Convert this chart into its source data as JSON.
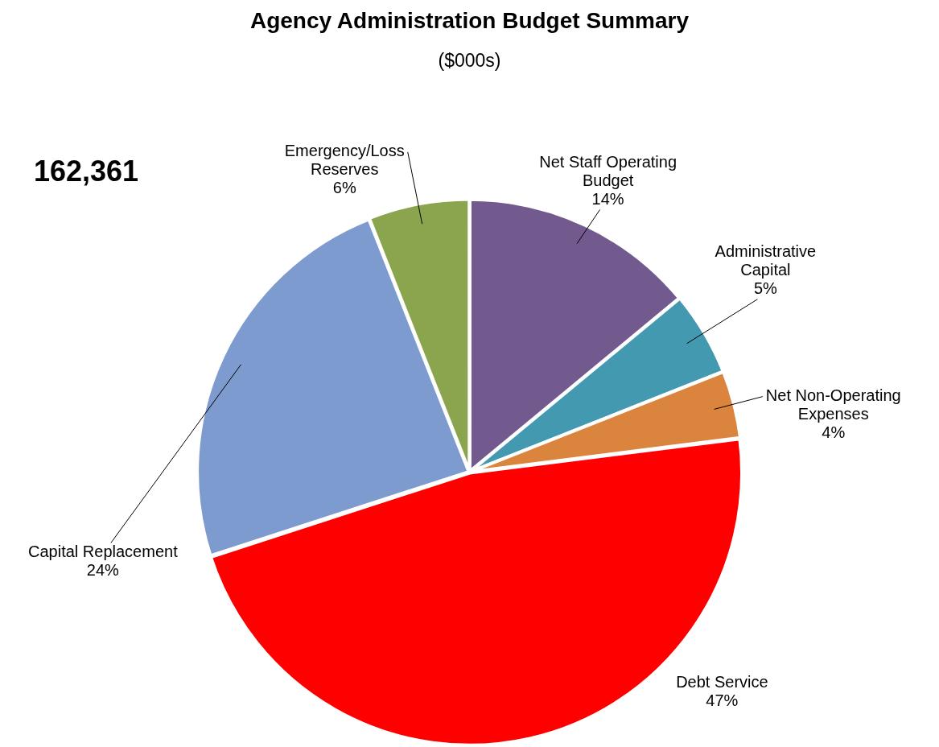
{
  "chart_data": {
    "type": "pie",
    "title": "Agency Administration Budget Summary",
    "subtitle": "($000s)",
    "categories": [
      "Net Staff Operating Budget",
      "Administrative Capital",
      "Net Non-Operating Expenses",
      "Debt Service",
      "Capital Replacement",
      "Emergency/Loss Reserves"
    ],
    "values": [
      14,
      5,
      4,
      47,
      24,
      6
    ],
    "value_labels": [
      "14%",
      "5%",
      "4%",
      "47%",
      "24%",
      "6%"
    ],
    "colors": [
      "#725a8f",
      "#4399b0",
      "#db843d",
      "#ff0000",
      "#7e9bcf",
      "#8ba54f"
    ],
    "annotations": [
      "162,361"
    ],
    "legend": false
  }
}
